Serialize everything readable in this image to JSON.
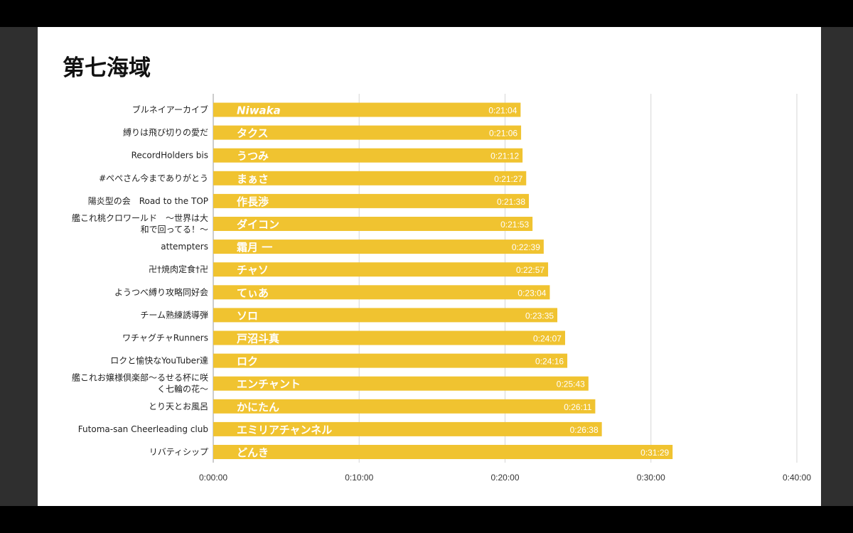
{
  "chart_data": {
    "type": "bar",
    "orientation": "horizontal",
    "title": "第七海域",
    "bar_color": "#f0c330",
    "grid": true,
    "xlim": [
      0,
      2400
    ],
    "x_tick_values": [
      0,
      600,
      1200,
      1800,
      2400
    ],
    "x_tick_labels": [
      "0:00:00",
      "0:10:00",
      "0:20:00",
      "0:30:00",
      "0:40:00"
    ],
    "categories": [
      "ブルネイアーカイブ",
      "縛りは飛び切りの愛だ",
      "RecordHolders bis",
      "#ぺぺさん今までありがとう",
      "陽炎型の会　Road to the TOP",
      "艦これ桃クロワールド　～世界は大和で回ってる！～",
      "attempters",
      "卍†焼肉定食†卍",
      "ようつべ縛り攻略同好会",
      "チーム熟練誘導弾",
      "ワチャグチャRunners",
      "ロクと愉快なYouTuber達",
      "艦これお嬢様倶楽部～るせる杯に咲く七輪の花～",
      "とり天とお風呂",
      "Futoma-san Cheerleading club",
      "リバティシップ"
    ],
    "category_lines": [
      [
        "ブルネイアーカイブ"
      ],
      [
        "縛りは飛び切りの愛だ"
      ],
      [
        "RecordHolders bis"
      ],
      [
        "#ぺぺさん今までありがとう"
      ],
      [
        "陽炎型の会　Road to the TOP"
      ],
      [
        "艦これ桃クロワールド　～世界は大",
        "和で回ってる！～"
      ],
      [
        "attempters"
      ],
      [
        "卍†焼肉定食†卍"
      ],
      [
        "ようつべ縛り攻略同好会"
      ],
      [
        "チーム熟練誘導弾"
      ],
      [
        "ワチャグチャRunners"
      ],
      [
        "ロクと愉快なYouTuber達"
      ],
      [
        "艦これお嬢様倶楽部～るせる杯に咲",
        "く七輪の花～"
      ],
      [
        "とり天とお風呂"
      ],
      [
        "Futoma-san Cheerleading club"
      ],
      [
        "リバティシップ"
      ]
    ],
    "bar_labels": [
      "Niwaka",
      "タクス",
      "うつみ",
      "まぁさ",
      "作長渉",
      "ダイコン",
      "霜月 一",
      "チャソ",
      "てぃあ",
      "ソロ",
      "戸沼斗真",
      "ロク",
      "エンチャント",
      "かにたん",
      "エミリアチャンネル",
      "どんき"
    ],
    "value_labels": [
      "0:21:04",
      "0:21:06",
      "0:21:12",
      "0:21:27",
      "0:21:38",
      "0:21:53",
      "0:22:39",
      "0:22:57",
      "0:23:04",
      "0:23:35",
      "0:24:07",
      "0:24:16",
      "0:25:43",
      "0:26:11",
      "0:26:38",
      "0:31:29"
    ],
    "values": [
      1264,
      1266,
      1272,
      1287,
      1298,
      1313,
      1359,
      1377,
      1384,
      1415,
      1447,
      1456,
      1543,
      1571,
      1598,
      1889
    ],
    "xlabel": "",
    "ylabel": ""
  }
}
